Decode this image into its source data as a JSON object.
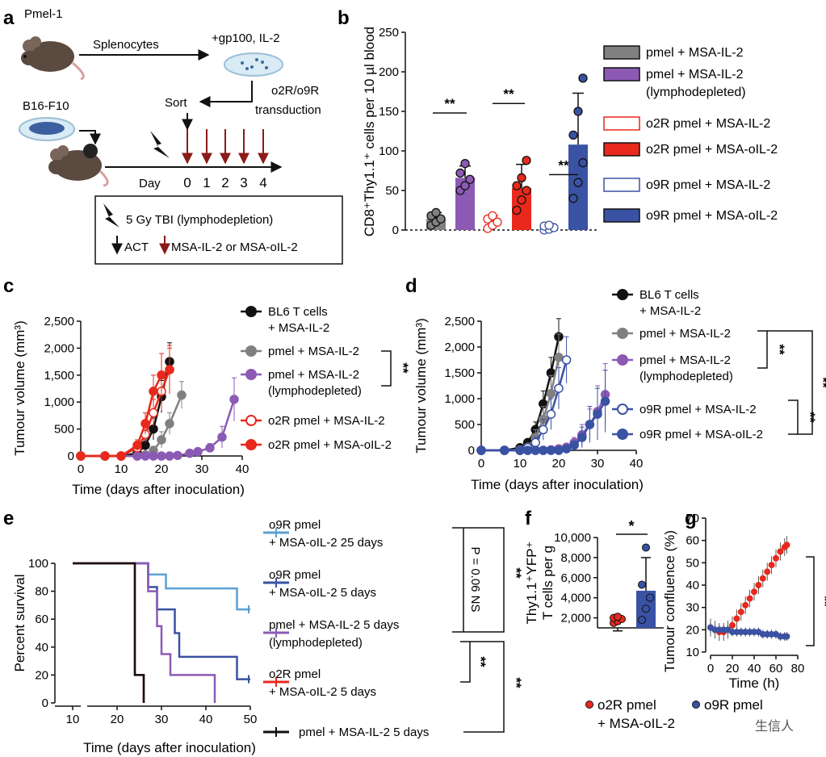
{
  "colors": {
    "grey": "#808080",
    "purple": "#8c5ab4",
    "red": "#e8291c",
    "blue": "#3a52a3",
    "lightblue": "#5aa0d2",
    "darkred": "#8b1a1a",
    "black": "#111111"
  },
  "panel_a": {
    "letter": "a",
    "mouse1_label": "Pmel-1",
    "arrow1_label": "Splenocytes",
    "dish_label": "+gp100, IL-2",
    "transduction": [
      "o2R/o9R",
      "transduction"
    ],
    "sort_label": "Sort",
    "tumour_label": "B16-F10",
    "day_label": "Day",
    "days": [
      "0",
      "1",
      "2",
      "3",
      "4"
    ],
    "legend_tbi": "5 Gy TBI (lymphodepletion)",
    "legend_act": "ACT",
    "legend_il2": "MSA-IL-2 or MSA-oIL-2"
  },
  "panel_b": {
    "letter": "b",
    "legend": [
      {
        "label": [
          "pmel + MSA-IL-2"
        ],
        "color": "#808080",
        "filled": true
      },
      {
        "label": [
          "pmel + MSA-IL-2",
          "(lymphodepleted)"
        ],
        "color": "#8c5ab4",
        "filled": true
      },
      {
        "label": [
          "o2R pmel + MSA-IL-2"
        ],
        "color": "#e8291c",
        "filled": false
      },
      {
        "label": [
          "o2R pmel + MSA-oIL-2"
        ],
        "color": "#e8291c",
        "filled": true
      },
      {
        "label": [
          "o9R pmel + MSA-IL-2"
        ],
        "color": "#3a52a3",
        "filled": false
      },
      {
        "label": [
          "o9R pmel + MSA-oIL-2"
        ],
        "color": "#3a52a3",
        "filled": true
      }
    ],
    "sig": [
      "**",
      "**",
      "**"
    ]
  },
  "panel_c": {
    "letter": "c"
  },
  "panel_d": {
    "letter": "d"
  },
  "panel_e": {
    "letter": "e",
    "pval": "P = 0.06 NS",
    "sig": [
      "**",
      "**",
      "**"
    ]
  },
  "panel_f": {
    "letter": "f",
    "sig": "*"
  },
  "panel_g": {
    "letter": "g",
    "sig": "**",
    "legend": [
      {
        "label": [
          "o2R pmel",
          "+ MSA-oIL-2"
        ],
        "color": "#e8291c"
      },
      {
        "label": [
          "o9R pmel",
          ""
        ],
        "color": "#3a52a3"
      }
    ]
  },
  "watermark": "生信人",
  "chart_data": [
    {
      "id": "b",
      "type": "bar",
      "ylabel": "CD8⁺Thy1.1⁺ cells per 10 µl blood",
      "ylim": [
        0,
        250
      ],
      "yticks": [
        "0",
        "50",
        "100",
        "150",
        "200",
        "250"
      ],
      "categories": [
        "pmel + MSA-IL-2",
        "pmel + MSA-IL-2 (lymphodepleted)",
        "o2R pmel + MSA-IL-2",
        "o2R pmel + MSA-oIL-2",
        "o9R pmel + MSA-IL-2",
        "o9R pmel + MSA-oIL-2"
      ],
      "values": [
        14,
        66,
        10,
        53,
        3,
        108
      ],
      "errors": [
        8,
        15,
        8,
        30,
        5,
        65
      ],
      "points": [
        [
          6,
          10,
          14,
          18,
          22
        ],
        [
          50,
          56,
          64,
          72,
          84
        ],
        [
          2,
          6,
          10,
          14,
          18
        ],
        [
          25,
          38,
          50,
          56,
          66,
          88
        ],
        [
          0,
          1,
          3,
          5,
          6
        ],
        [
          40,
          60,
          85,
          120,
          150,
          192
        ]
      ],
      "filled": [
        true,
        true,
        false,
        true,
        false,
        true
      ]
    },
    {
      "id": "c",
      "type": "line",
      "xlabel": "Time (days after inoculation)",
      "ylabel": "Tumour volume (mm³)",
      "xlim": [
        0,
        40
      ],
      "ylim": [
        0,
        2500
      ],
      "xticks": [
        "0",
        "10",
        "20",
        "30",
        "40"
      ],
      "yticks": [
        "0",
        "500",
        "1,000",
        "1,500",
        "2,000",
        "2,500"
      ],
      "series": [
        {
          "name": "BL6 T cells + MSA-IL-2",
          "color": "#111111",
          "filled": true,
          "x": [
            0,
            6,
            10,
            14,
            16,
            18,
            20,
            22
          ],
          "y": [
            0,
            0,
            0,
            50,
            200,
            500,
            1100,
            1750
          ],
          "err": [
            0,
            0,
            0,
            30,
            100,
            200,
            300,
            350
          ]
        },
        {
          "name": "pmel + MSA-IL-2",
          "color": "#808080",
          "filled": true,
          "x": [
            0,
            6,
            10,
            14,
            16,
            18,
            20,
            22,
            25
          ],
          "y": [
            0,
            0,
            0,
            0,
            20,
            100,
            300,
            600,
            1130
          ],
          "err": [
            0,
            0,
            0,
            0,
            20,
            80,
            150,
            200,
            250
          ]
        },
        {
          "name": "pmel + MSA-IL-2 (lymphodepleted)",
          "color": "#8c5ab4",
          "filled": true,
          "x": [
            0,
            6,
            10,
            14,
            16,
            18,
            20,
            22,
            24,
            27,
            29,
            32,
            35,
            38
          ],
          "y": [
            0,
            0,
            0,
            0,
            0,
            0,
            0,
            0,
            10,
            50,
            80,
            150,
            350,
            1050
          ],
          "err": [
            0,
            0,
            0,
            0,
            0,
            0,
            0,
            0,
            10,
            30,
            50,
            80,
            200,
            400
          ]
        },
        {
          "name": "o2R pmel + MSA-IL-2",
          "color": "#e8291c",
          "filled": false,
          "x": [
            0,
            6,
            10,
            14,
            16,
            18,
            20,
            22
          ],
          "y": [
            0,
            0,
            0,
            150,
            400,
            800,
            1200,
            1600
          ],
          "err": [
            0,
            0,
            0,
            80,
            150,
            250,
            350,
            400
          ]
        },
        {
          "name": "o2R pmel + MSA-oIL-2",
          "color": "#e8291c",
          "filled": true,
          "x": [
            0,
            6,
            10,
            14,
            16,
            18,
            20,
            22
          ],
          "y": [
            0,
            0,
            0,
            200,
            600,
            1200,
            1500,
            1600
          ],
          "err": [
            0,
            0,
            0,
            100,
            200,
            300,
            400,
            450
          ]
        }
      ],
      "sig": "**"
    },
    {
      "id": "d",
      "type": "line",
      "xlabel": "Time (days after inoculation)",
      "ylabel": "Tumour volume (mm³)",
      "xlim": [
        0,
        40
      ],
      "ylim": [
        0,
        2500
      ],
      "xticks": [
        "0",
        "10",
        "20",
        "30",
        "40"
      ],
      "yticks": [
        "0",
        "500",
        "1,000",
        "1,500",
        "2,000",
        "2,500"
      ],
      "series": [
        {
          "name": "BL6 T cells + MSA-IL-2",
          "color": "#111111",
          "filled": true,
          "x": [
            0,
            6,
            10,
            12,
            14,
            16,
            18,
            20
          ],
          "y": [
            0,
            0,
            50,
            150,
            400,
            900,
            1500,
            2200
          ],
          "err": [
            0,
            0,
            30,
            60,
            150,
            250,
            300,
            350
          ]
        },
        {
          "name": "pmel + MSA-IL-2",
          "color": "#808080",
          "filled": true,
          "x": [
            0,
            6,
            10,
            12,
            14,
            16,
            18,
            20
          ],
          "y": [
            0,
            0,
            10,
            60,
            250,
            600,
            1100,
            1800
          ],
          "err": [
            0,
            0,
            10,
            40,
            150,
            250,
            350,
            450
          ]
        },
        {
          "name": "pmel + MSA-IL-2 (lymphodepleted)",
          "color": "#8c5ab4",
          "filled": true,
          "x": [
            0,
            6,
            10,
            12,
            14,
            16,
            18,
            20,
            22,
            24,
            26,
            28,
            30,
            32
          ],
          "y": [
            0,
            0,
            0,
            0,
            0,
            0,
            10,
            30,
            60,
            150,
            300,
            500,
            750,
            1080
          ],
          "err": [
            0,
            0,
            0,
            0,
            0,
            0,
            10,
            20,
            40,
            100,
            200,
            300,
            500,
            600
          ]
        },
        {
          "name": "o9R pmel + MSA-IL-2",
          "color": "#3a52a3",
          "filled": false,
          "x": [
            0,
            6,
            10,
            12,
            14,
            16,
            18,
            20,
            22
          ],
          "y": [
            0,
            0,
            0,
            50,
            150,
            400,
            700,
            1200,
            1750
          ],
          "err": [
            0,
            0,
            0,
            40,
            100,
            200,
            300,
            400,
            450
          ]
        },
        {
          "name": "o9R pmel + MSA-oIL-2",
          "color": "#3a52a3",
          "filled": true,
          "x": [
            0,
            6,
            10,
            12,
            14,
            16,
            18,
            20,
            22,
            24,
            26,
            28,
            30,
            32
          ],
          "y": [
            0,
            0,
            0,
            0,
            0,
            0,
            0,
            0,
            30,
            100,
            250,
            500,
            700,
            950
          ],
          "err": [
            0,
            0,
            0,
            0,
            0,
            0,
            0,
            0,
            30,
            80,
            200,
            350,
            500,
            600
          ]
        }
      ],
      "sig": [
        "**",
        "**",
        "**"
      ]
    },
    {
      "id": "e",
      "type": "line",
      "xlabel": "Time (days after inoculation)",
      "ylabel": "Percent survival",
      "xlim": [
        10,
        50
      ],
      "ylim": [
        0,
        100
      ],
      "xticks": [
        "10",
        "20",
        "30",
        "40",
        "50"
      ],
      "yticks": [
        "0",
        "20",
        "40",
        "60",
        "80",
        "100"
      ],
      "series": [
        {
          "name": "o9R pmel + MSA-oIL-2 25 days",
          "color": "#5aa0d2",
          "x": [
            10,
            23,
            27,
            27,
            31,
            31,
            47,
            47,
            50
          ],
          "y": [
            100,
            100,
            100,
            92,
            92,
            82,
            82,
            67,
            67
          ]
        },
        {
          "name": "o9R pmel + MSA-oIL-2 5 days",
          "color": "#3a52a3",
          "x": [
            10,
            23,
            27,
            27,
            29,
            29,
            33,
            33,
            34,
            34,
            41,
            41,
            47,
            47,
            50
          ],
          "y": [
            100,
            100,
            100,
            83,
            83,
            67,
            67,
            50,
            50,
            33,
            33,
            33,
            33,
            17,
            17
          ]
        },
        {
          "name": "pmel + MSA-IL-2 5 days (lymphodepleted)",
          "color": "#8c5ab4",
          "x": [
            10,
            23,
            27,
            27,
            29,
            29,
            30,
            30,
            32,
            32,
            42,
            42
          ],
          "y": [
            100,
            100,
            100,
            80,
            80,
            55,
            55,
            35,
            35,
            20,
            20,
            0
          ]
        },
        {
          "name": "o2R pmel + MSA-oIL-2 5 days",
          "color": "#e8291c",
          "x": [
            10,
            23,
            24,
            24,
            26,
            26
          ],
          "y": [
            100,
            100,
            100,
            20,
            20,
            0
          ]
        },
        {
          "name": "pmel + MSA-IL-2 5 days",
          "color": "#111111",
          "x": [
            10,
            23,
            24,
            24,
            26,
            26
          ],
          "y": [
            100,
            100,
            100,
            20,
            20,
            0
          ]
        }
      ],
      "labels": [
        [
          "o9R pmel",
          "+ MSA-oIL-2 25 days"
        ],
        [
          "o9R pmel",
          "+ MSA-oIL-2 5 days"
        ],
        [
          "pmel + MSA-IL-2 5 days",
          "(lymphodepleted)"
        ],
        [
          "o2R pmel",
          "+ MSA-oIL-2 5 days"
        ],
        [
          "pmel + MSA-IL-2 5 days"
        ]
      ]
    },
    {
      "id": "f",
      "type": "bar",
      "ylabel": [
        "Thy1.1⁺YFP⁺",
        "T cells per g"
      ],
      "ylim": [
        0,
        10000
      ],
      "yticks": [
        "2,000",
        "4,000",
        "6,000",
        "8,000",
        "10,000"
      ],
      "categories": [
        "o2R pmel + MSA-oIL-2",
        "o9R pmel"
      ],
      "values": [
        450,
        4700
      ],
      "errors": [
        250,
        3300
      ],
      "points": [
        [
          150,
          300,
          500,
          600,
          700
        ],
        [
          1800,
          2900,
          4000,
          5300,
          9000
        ]
      ],
      "colors": [
        "#e8291c",
        "#3a52a3"
      ]
    },
    {
      "id": "g",
      "type": "line",
      "xlabel": "Time (h)",
      "ylabel": "Tumour confluence (%)",
      "xlim": [
        0,
        80
      ],
      "ylim": [
        10,
        70
      ],
      "xticks": [
        "0",
        "20",
        "40",
        "60",
        "80"
      ],
      "yticks": [
        "10",
        "20",
        "30",
        "40",
        "50",
        "60",
        "70"
      ],
      "series": [
        {
          "name": "o2R pmel + MSA-oIL-2",
          "color": "#e8291c",
          "x": [
            0,
            4,
            8,
            12,
            16,
            20,
            24,
            28,
            32,
            36,
            40,
            44,
            48,
            52,
            56,
            60,
            64,
            68,
            70
          ],
          "y": [
            21,
            20,
            19,
            19,
            20,
            22,
            25,
            28,
            31,
            34,
            37,
            40,
            43,
            46,
            49,
            52,
            55,
            57,
            58
          ],
          "err": 4
        },
        {
          "name": "o9R pmel",
          "color": "#3a52a3",
          "x": [
            0,
            4,
            8,
            12,
            16,
            20,
            24,
            28,
            32,
            36,
            40,
            44,
            48,
            52,
            56,
            60,
            64,
            68,
            70
          ],
          "y": [
            21,
            20,
            20,
            20,
            20,
            19,
            19,
            19,
            19,
            19,
            19,
            19,
            18,
            18,
            18,
            18,
            17,
            17,
            17
          ],
          "err": 2
        }
      ]
    }
  ]
}
